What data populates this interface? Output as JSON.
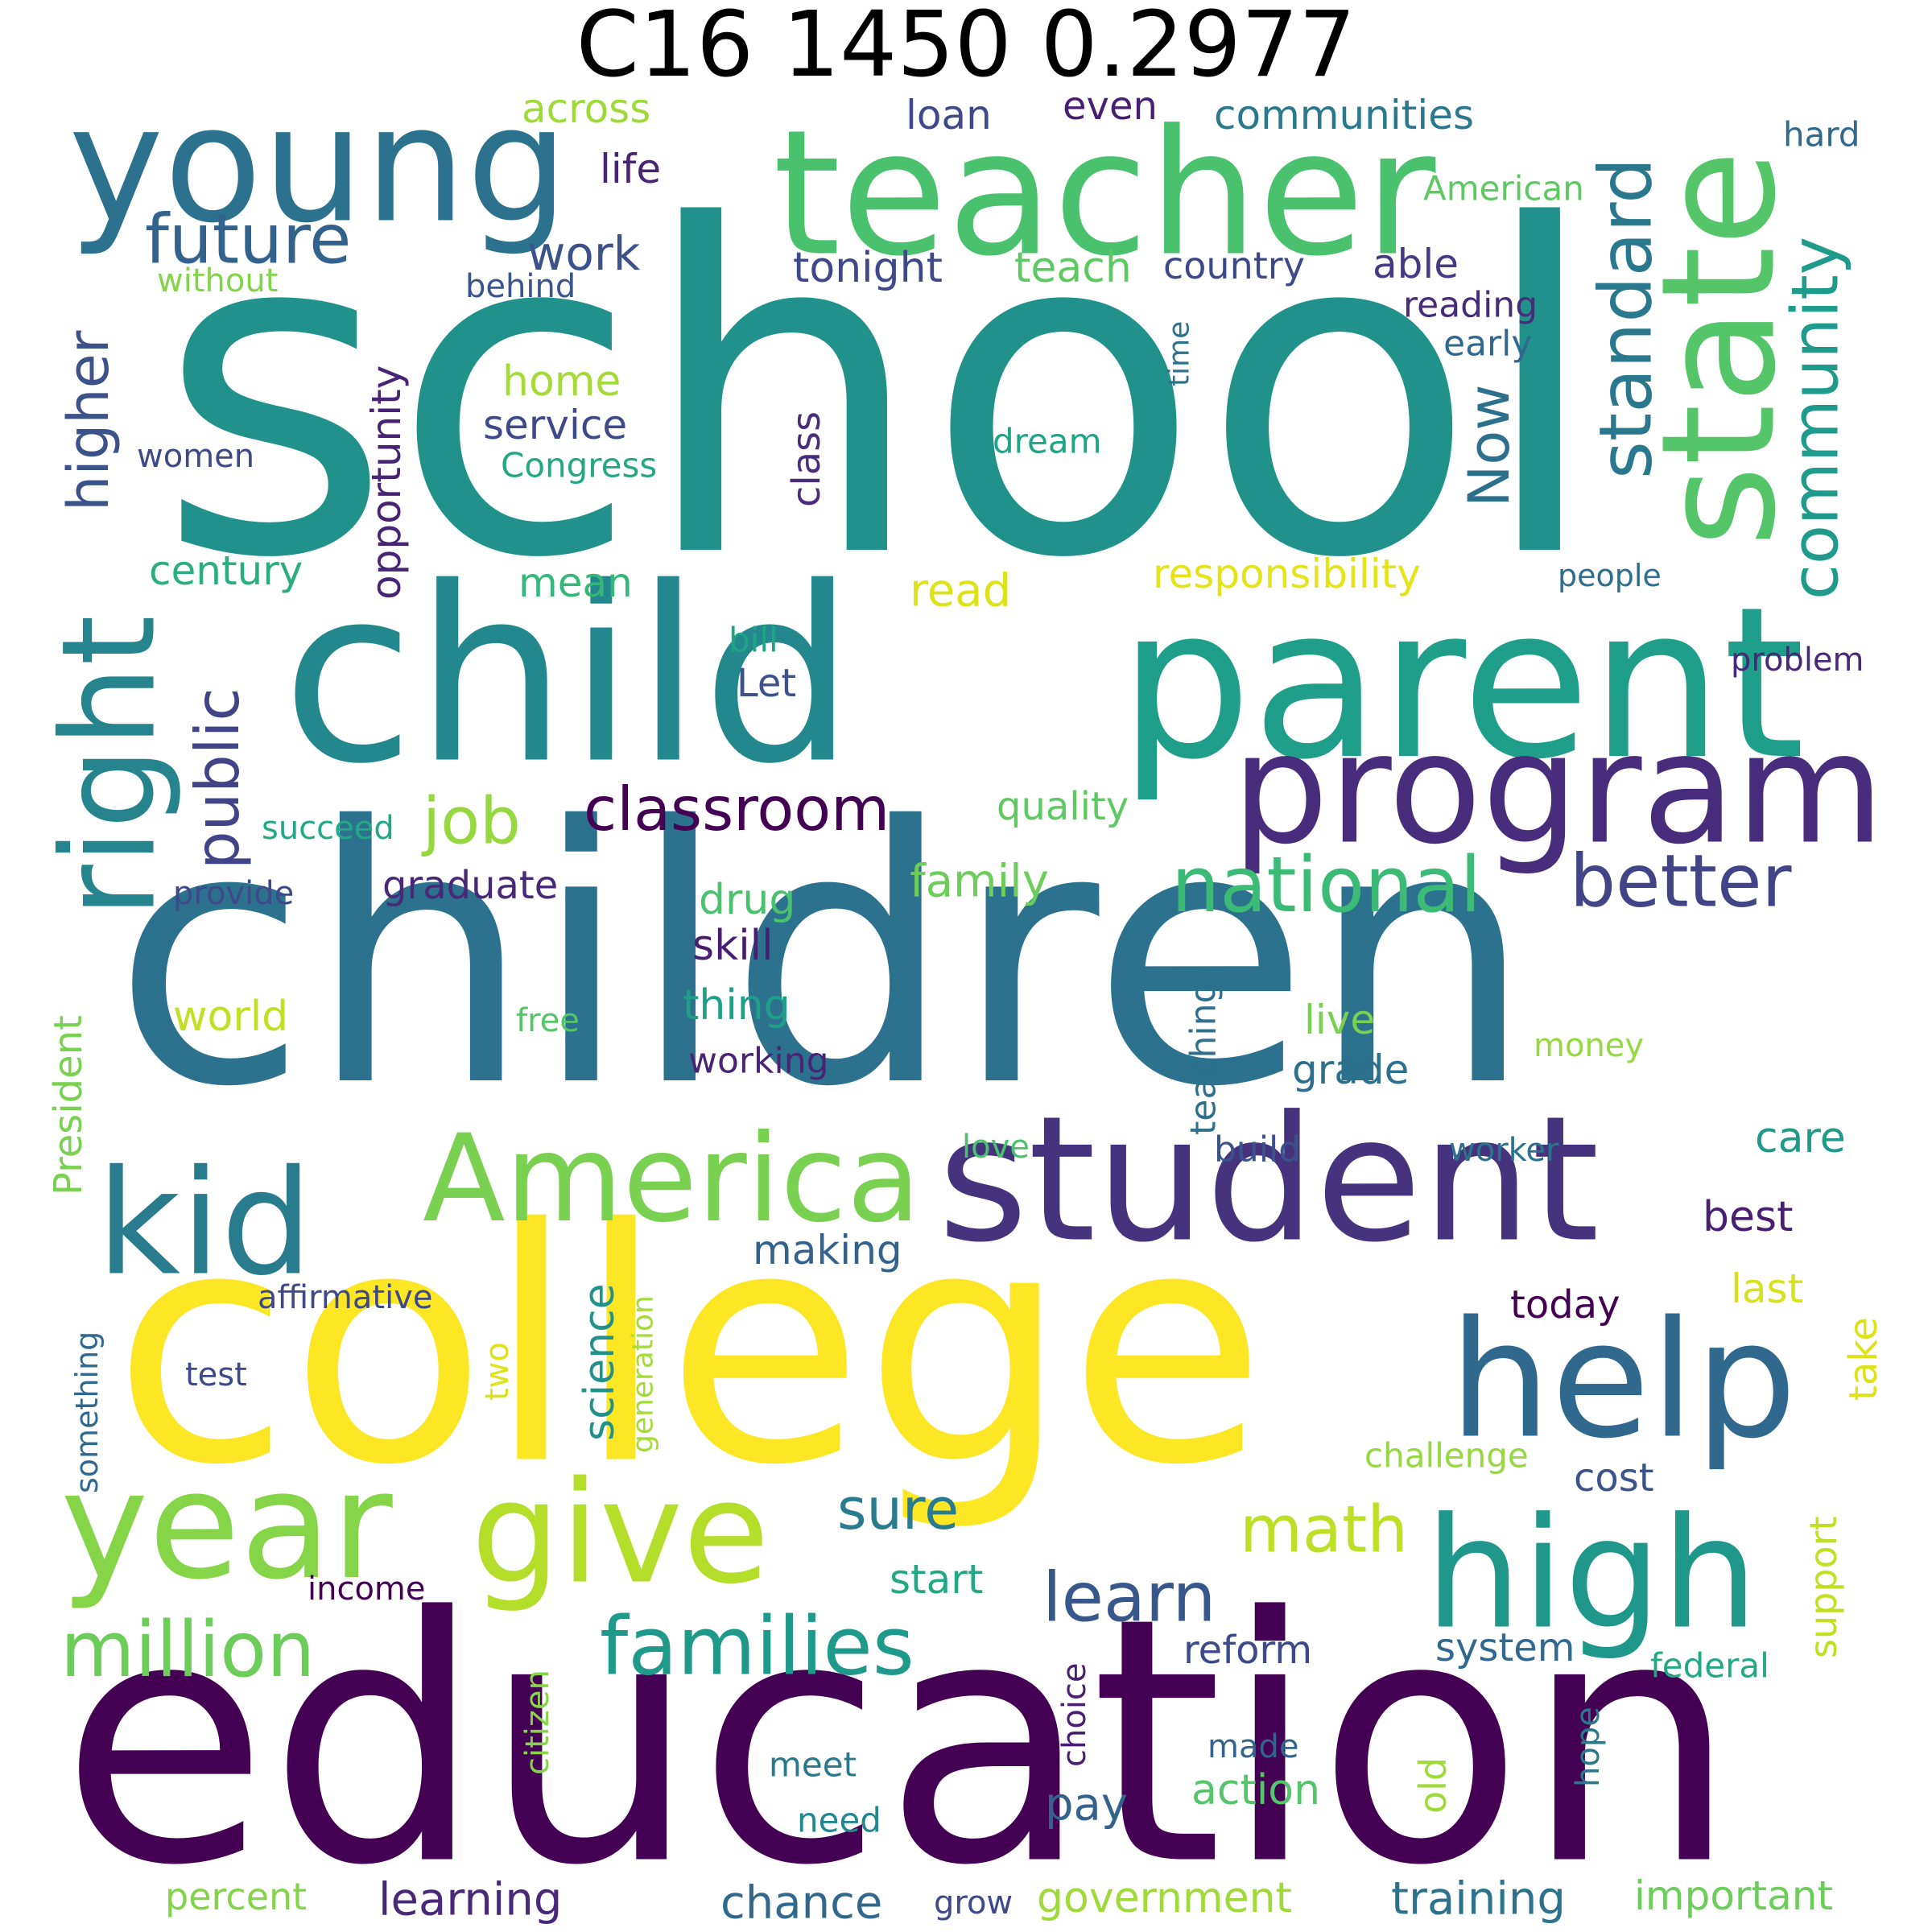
{
  "title": "C16 1450 0.2977",
  "words": [
    {
      "text": "school",
      "color": "#21918c",
      "rotate": false
    },
    {
      "text": "children",
      "color": "#2c728e",
      "rotate": false
    },
    {
      "text": "education",
      "color": "#440154",
      "rotate": false
    },
    {
      "text": "college",
      "color": "#fde725",
      "rotate": false
    },
    {
      "text": "child",
      "color": "#23888e",
      "rotate": false
    },
    {
      "text": "parent",
      "color": "#1f9e89",
      "rotate": false
    },
    {
      "text": "teacher",
      "color": "#4ac16d",
      "rotate": false
    },
    {
      "text": "student",
      "color": "#46337e",
      "rotate": false
    },
    {
      "text": "young",
      "color": "#2c728e",
      "rotate": false
    },
    {
      "text": "help",
      "color": "#31688e",
      "rotate": false
    },
    {
      "text": "program",
      "color": "#472d7b",
      "rotate": false
    },
    {
      "text": "high",
      "color": "#1f988b",
      "rotate": false
    },
    {
      "text": "give",
      "color": "#b5de2b",
      "rotate": false
    },
    {
      "text": "year",
      "color": "#86d549",
      "rotate": false
    },
    {
      "text": "state",
      "color": "#54c568",
      "rotate": true
    },
    {
      "text": "kid",
      "color": "#287c8e",
      "rotate": false
    },
    {
      "text": "America",
      "color": "#7ad151",
      "rotate": false
    },
    {
      "text": "right",
      "color": "#25848e",
      "rotate": true
    },
    {
      "text": "families",
      "color": "#1f9a8a",
      "rotate": false
    },
    {
      "text": "million",
      "color": "#6ccd5a",
      "rotate": false
    },
    {
      "text": "future",
      "color": "#33638d",
      "rotate": false
    },
    {
      "text": "national",
      "color": "#3bbb75",
      "rotate": false
    },
    {
      "text": "better",
      "color": "#414487",
      "rotate": false
    },
    {
      "text": "standard",
      "color": "#2a788e",
      "rotate": true
    },
    {
      "text": "community",
      "color": "#1e9b8a",
      "rotate": true
    },
    {
      "text": "classroom",
      "color": "#440154",
      "rotate": false
    },
    {
      "text": "job",
      "color": "#95d840",
      "rotate": false
    },
    {
      "text": "public",
      "color": "#414487",
      "rotate": true
    },
    {
      "text": "learn",
      "color": "#38588c",
      "rotate": false
    },
    {
      "text": "math",
      "color": "#bddf26",
      "rotate": false
    },
    {
      "text": "sure",
      "color": "#297b8e",
      "rotate": false
    },
    {
      "text": "higher",
      "color": "#3b528b",
      "rotate": true
    },
    {
      "text": "Now",
      "color": "#2d708e",
      "rotate": true
    },
    {
      "text": "opportunity",
      "color": "#482475",
      "rotate": true
    },
    {
      "text": "across",
      "color": "#a0da39",
      "rotate": false
    },
    {
      "text": "loan",
      "color": "#3e4989",
      "rotate": false
    },
    {
      "text": "even",
      "color": "#481f70",
      "rotate": false
    },
    {
      "text": "communities",
      "color": "#2a788e",
      "rotate": false
    },
    {
      "text": "hard",
      "color": "#31688e",
      "rotate": false
    },
    {
      "text": "life",
      "color": "#482475",
      "rotate": false
    },
    {
      "text": "American",
      "color": "#5ec962",
      "rotate": false
    },
    {
      "text": "work",
      "color": "#3b528b",
      "rotate": false
    },
    {
      "text": "tonight",
      "color": "#3e4989",
      "rotate": false
    },
    {
      "text": "teach",
      "color": "#5ec962",
      "rotate": false
    },
    {
      "text": "country",
      "color": "#3e4989",
      "rotate": false
    },
    {
      "text": "able",
      "color": "#443983",
      "rotate": false
    },
    {
      "text": "without",
      "color": "#84d44b",
      "rotate": false
    },
    {
      "text": "behind",
      "color": "#3a548c",
      "rotate": false
    },
    {
      "text": "reading",
      "color": "#472c7a",
      "rotate": false
    },
    {
      "text": "early",
      "color": "#31688e",
      "rotate": false
    },
    {
      "text": "time",
      "color": "#2c728e",
      "rotate": true
    },
    {
      "text": "home",
      "color": "#a5db36",
      "rotate": false
    },
    {
      "text": "service",
      "color": "#3e4989",
      "rotate": false
    },
    {
      "text": "Congress",
      "color": "#22a884",
      "rotate": false
    },
    {
      "text": "class",
      "color": "#472d7b",
      "rotate": true
    },
    {
      "text": "dream",
      "color": "#20a486",
      "rotate": false
    },
    {
      "text": "women",
      "color": "#3e4989",
      "rotate": false
    },
    {
      "text": "century",
      "color": "#29af7f",
      "rotate": false
    },
    {
      "text": "mean",
      "color": "#35b779",
      "rotate": false
    },
    {
      "text": "read",
      "color": "#dde318",
      "rotate": false
    },
    {
      "text": "responsibility",
      "color": "#e5e419",
      "rotate": false
    },
    {
      "text": "people",
      "color": "#2e6e8e",
      "rotate": false
    },
    {
      "text": "bill",
      "color": "#20a486",
      "rotate": false
    },
    {
      "text": "Let",
      "color": "#3b528b",
      "rotate": false
    },
    {
      "text": "problem",
      "color": "#482878",
      "rotate": false
    },
    {
      "text": "quality",
      "color": "#5ec962",
      "rotate": false
    },
    {
      "text": "succeed",
      "color": "#22a884",
      "rotate": false
    },
    {
      "text": "provide",
      "color": "#3e4989",
      "rotate": false
    },
    {
      "text": "graduate",
      "color": "#482878",
      "rotate": false
    },
    {
      "text": "drug",
      "color": "#4ac16d",
      "rotate": false
    },
    {
      "text": "family",
      "color": "#6ccd5a",
      "rotate": false
    },
    {
      "text": "skill",
      "color": "#481f70",
      "rotate": false
    },
    {
      "text": "teaching",
      "color": "#2d708e",
      "rotate": true
    },
    {
      "text": "President",
      "color": "#7ad151",
      "rotate": true
    },
    {
      "text": "world",
      "color": "#c2df23",
      "rotate": false
    },
    {
      "text": "free",
      "color": "#54c568",
      "rotate": false
    },
    {
      "text": "thing",
      "color": "#1f9e89",
      "rotate": false
    },
    {
      "text": "working",
      "color": "#482475",
      "rotate": false
    },
    {
      "text": "live",
      "color": "#7ad151",
      "rotate": false
    },
    {
      "text": "grade",
      "color": "#2d708e",
      "rotate": false
    },
    {
      "text": "money",
      "color": "#95d840",
      "rotate": false
    },
    {
      "text": "care",
      "color": "#1f9a8a",
      "rotate": false
    },
    {
      "text": "love",
      "color": "#4ac16d",
      "rotate": false
    },
    {
      "text": "build",
      "color": "#3b528b",
      "rotate": false
    },
    {
      "text": "worker",
      "color": "#2c728e",
      "rotate": false
    },
    {
      "text": "best",
      "color": "#481f70",
      "rotate": false
    },
    {
      "text": "making",
      "color": "#33638d",
      "rotate": false
    },
    {
      "text": "affirmative",
      "color": "#3e4989",
      "rotate": false
    },
    {
      "text": "today",
      "color": "#440154",
      "rotate": false
    },
    {
      "text": "last",
      "color": "#d8e219",
      "rotate": false
    },
    {
      "text": "something",
      "color": "#31688e",
      "rotate": true
    },
    {
      "text": "test",
      "color": "#3e4989",
      "rotate": false
    },
    {
      "text": "two",
      "color": "#dde318",
      "rotate": true
    },
    {
      "text": "science",
      "color": "#21918c",
      "rotate": true
    },
    {
      "text": "generation",
      "color": "#a5db36",
      "rotate": true
    },
    {
      "text": "take",
      "color": "#dde318",
      "rotate": true
    },
    {
      "text": "challenge",
      "color": "#95d840",
      "rotate": false
    },
    {
      "text": "cost",
      "color": "#3b528b",
      "rotate": false
    },
    {
      "text": "support",
      "color": "#c2df23",
      "rotate": true
    },
    {
      "text": "start",
      "color": "#22a884",
      "rotate": false
    },
    {
      "text": "income",
      "color": "#440154",
      "rotate": false
    },
    {
      "text": "reform",
      "color": "#3e4989",
      "rotate": false
    },
    {
      "text": "system",
      "color": "#31688e",
      "rotate": false
    },
    {
      "text": "federal",
      "color": "#22a884",
      "rotate": false
    },
    {
      "text": "citizen",
      "color": "#86d549",
      "rotate": true
    },
    {
      "text": "choice",
      "color": "#481f70",
      "rotate": true
    },
    {
      "text": "made",
      "color": "#33638d",
      "rotate": false
    },
    {
      "text": "hope",
      "color": "#2a788e",
      "rotate": true
    },
    {
      "text": "meet",
      "color": "#2a788e",
      "rotate": false
    },
    {
      "text": "pay",
      "color": "#33638d",
      "rotate": false
    },
    {
      "text": "action",
      "color": "#54c568",
      "rotate": false
    },
    {
      "text": "old",
      "color": "#a0da39",
      "rotate": true
    },
    {
      "text": "need",
      "color": "#23888e",
      "rotate": false
    },
    {
      "text": "percent",
      "color": "#84d44b",
      "rotate": false
    },
    {
      "text": "learning",
      "color": "#482878",
      "rotate": false
    },
    {
      "text": "chance",
      "color": "#31688e",
      "rotate": false
    },
    {
      "text": "grow",
      "color": "#3e4989",
      "rotate": false
    },
    {
      "text": "government",
      "color": "#a0da39",
      "rotate": false
    },
    {
      "text": "training",
      "color": "#2c728e",
      "rotate": false
    },
    {
      "text": "important",
      "color": "#6ccd5a",
      "rotate": false
    }
  ]
}
